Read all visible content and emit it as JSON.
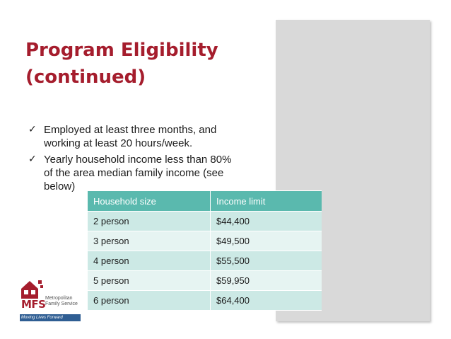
{
  "slide": {
    "title_lines": [
      "Program Eligibility",
      "(continued)"
    ],
    "bullets": [
      [
        "Employed at least three months, and",
        "working at least 20 hours/week."
      ],
      [
        "Yearly household income less than 80%",
        "of the area median family income (see",
        "below)"
      ]
    ],
    "check_icon": "✓"
  },
  "table": {
    "headers": [
      "Household size",
      "Income limit"
    ],
    "rows": [
      [
        "2 person",
        "$44,400"
      ],
      [
        "3 person",
        "$49,500"
      ],
      [
        "4 person",
        "$55,500"
      ],
      [
        "5 person",
        "$59,950"
      ],
      [
        "6 person",
        "$64,400"
      ]
    ]
  },
  "logo": {
    "abbrev": "MFS",
    "name_lines": [
      "Metropolitan",
      "Family Service"
    ],
    "tagline": "Moving Lives Forward",
    "brand_red": "#a51d2d",
    "brand_blue": "#2f5e93"
  },
  "colors": {
    "title": "#a51d2d",
    "table_header": "#5ab9ae",
    "table_row_odd": "#cce9e5",
    "table_row_even": "#e6f4f2",
    "side_panel": "#d9d9d9"
  }
}
